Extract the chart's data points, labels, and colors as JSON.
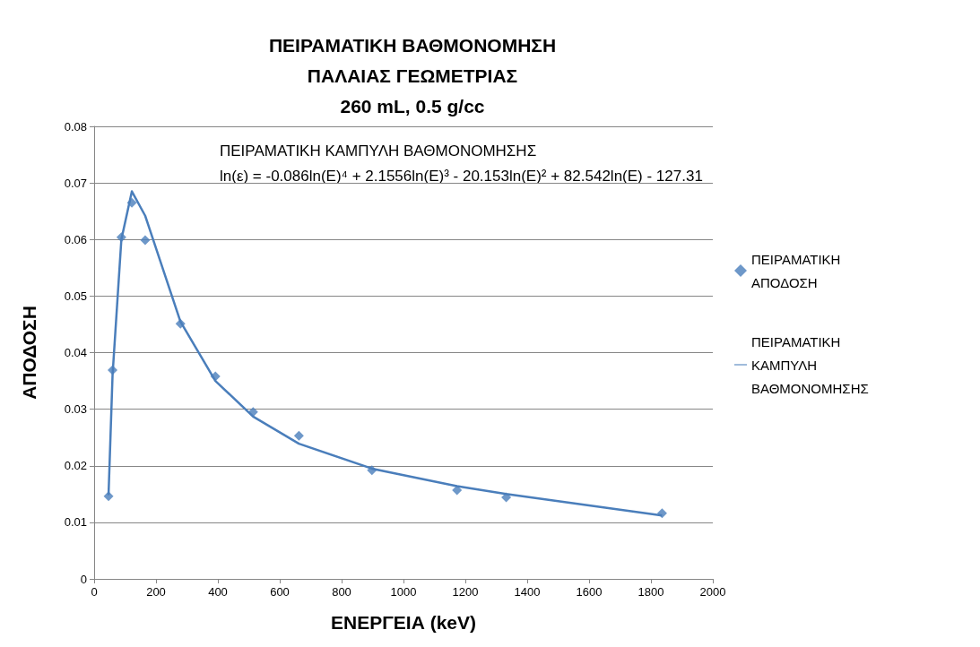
{
  "chart_data": {
    "type": "scatter",
    "title": "ΠΕΙΡΑΜΑΤΙΚΗ ΒΑΘΜΟΝΟΜΗΣΗ\nΠΑΛΑΙΑΣ ΓΕΩΜΕΤΡΙΑΣ\n260 mL, 0.5 g/cc",
    "xlabel": "ΕΝΕΡΓΕΙΑ (keV)",
    "ylabel": "ΑΠΟΔΟΣΗ",
    "annotations": [
      "ΠΕΙΡΑΜΑΤΙΚΗ ΚΑΜΠΥΛΗ ΒΑΘΜΟΝΟΜΗΣΗΣ",
      "ln(ε) = -0.086ln(E)⁴ + 2.1556ln(E)³ - 20.153ln(E)² + 82.542ln(E) - 127.31"
    ],
    "series": [
      {
        "name": "ΠΕΙΡΑΜΑΤΙΚΗ ΑΠΟΔΟΣΗ",
        "marker": "diamond",
        "color": "#4a7ebb",
        "x": [
          46.5,
          59.5,
          88,
          122,
          165,
          279,
          392,
          514,
          662,
          898,
          1173,
          1332,
          1836
        ],
        "values": [
          0.0146,
          0.0369,
          0.0604,
          0.0665,
          0.0599,
          0.0451,
          0.0358,
          0.0295,
          0.0253,
          0.0192,
          0.0157,
          0.0144,
          0.0116
        ]
      },
      {
        "name": "ΠΕΙΡΑΜΑΤΙΚΗ ΚΑΜΠΥΛΗ ΒΑΘΜΟΝΟΜΗΣΗΣ",
        "type": "line",
        "marker": "none",
        "line_style": "solid",
        "color": "#4a7ebb",
        "x": [
          46.5,
          59.5,
          88,
          122,
          165,
          279,
          392,
          514,
          662,
          898,
          1173,
          1332,
          1836
        ],
        "values": [
          0.0148,
          0.036,
          0.06,
          0.0685,
          0.0642,
          0.0455,
          0.035,
          0.0287,
          0.0239,
          0.0195,
          0.0164,
          0.015,
          0.0112
        ]
      }
    ],
    "xlim": [
      0,
      2000
    ],
    "xticks": [
      0,
      200,
      400,
      600,
      800,
      1000,
      1200,
      1400,
      1600,
      1800,
      2000
    ],
    "ylim": [
      0,
      0.08
    ],
    "yticks": [
      0,
      0.01,
      0.02,
      0.03,
      0.04,
      0.05,
      0.06,
      0.07,
      0.08
    ],
    "grid": "y",
    "legend": "right"
  }
}
